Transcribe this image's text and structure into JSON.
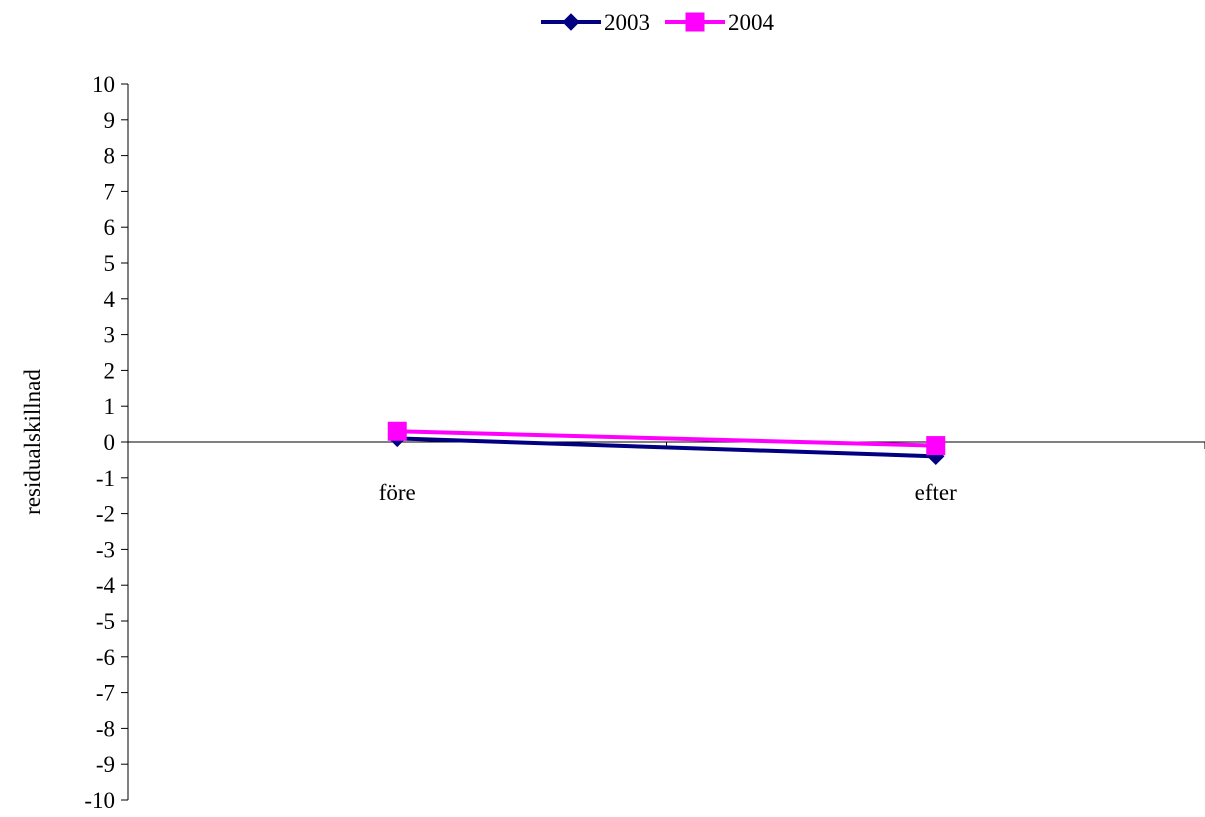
{
  "chart_data": {
    "type": "line",
    "categories": [
      "före",
      "efter"
    ],
    "series": [
      {
        "name": "2003",
        "values": [
          0.1,
          -0.4
        ],
        "color": "#000080",
        "marker": "diamond"
      },
      {
        "name": "2004",
        "values": [
          0.3,
          -0.1
        ],
        "color": "#FF00FF",
        "marker": "square"
      }
    ],
    "ylabel": "residualskillnad",
    "xlabel": "",
    "ylim": [
      -10,
      10
    ],
    "yticks": [
      10,
      9,
      8,
      7,
      6,
      5,
      4,
      3,
      2,
      1,
      0,
      -1,
      -2,
      -3,
      -4,
      -5,
      -6,
      -7,
      -8,
      -9,
      -10
    ],
    "grid": false,
    "legend": "top-center"
  }
}
